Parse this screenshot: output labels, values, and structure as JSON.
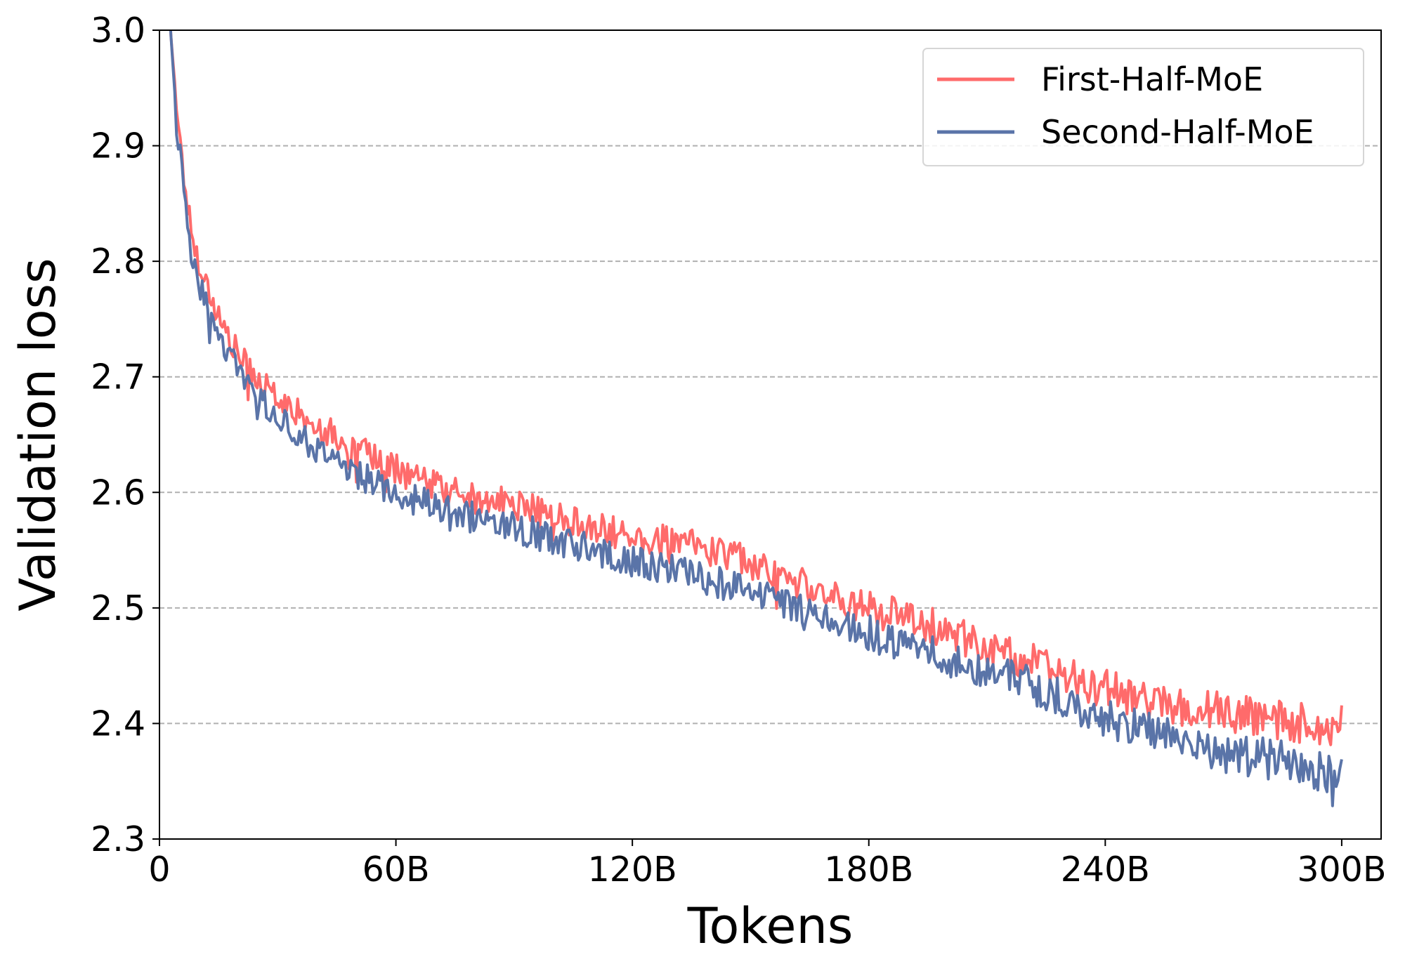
{
  "chart_data": {
    "type": "line",
    "xlabel": "Tokens",
    "ylabel": "Validation loss",
    "xlim": [
      0,
      310
    ],
    "ylim": [
      2.3,
      3.0
    ],
    "x_ticks": [
      0,
      60,
      120,
      180,
      240,
      300
    ],
    "x_tick_labels": [
      "0",
      "60B",
      "120B",
      "180B",
      "240B",
      "300B"
    ],
    "y_ticks": [
      2.3,
      2.4,
      2.5,
      2.6,
      2.7,
      2.8,
      2.9,
      3.0
    ],
    "y_tick_labels": [
      "2.3",
      "2.4",
      "2.5",
      "2.6",
      "2.7",
      "2.8",
      "2.9",
      "3.0"
    ],
    "grid": "horizontal dashed",
    "legend_position": "top-right",
    "x_unit": "B tokens",
    "series": [
      {
        "name": "First-Half-MoE",
        "color": "#ff6b6b",
        "x": [
          2,
          3,
          4,
          5,
          6,
          7,
          8,
          9,
          10,
          12,
          14,
          16,
          18,
          20,
          22,
          25,
          28,
          30,
          35,
          40,
          45,
          50,
          55,
          60,
          70,
          80,
          90,
          100,
          110,
          120,
          130,
          140,
          150,
          160,
          170,
          180,
          190,
          200,
          210,
          220,
          230,
          240,
          250,
          260,
          270,
          280,
          290,
          298,
          300
        ],
        "y": [
          3.05,
          2.99,
          2.95,
          2.91,
          2.88,
          2.85,
          2.83,
          2.81,
          2.8,
          2.78,
          2.76,
          2.745,
          2.73,
          2.72,
          2.71,
          2.7,
          2.69,
          2.683,
          2.67,
          2.658,
          2.648,
          2.638,
          2.628,
          2.62,
          2.605,
          2.595,
          2.59,
          2.58,
          2.57,
          2.56,
          2.557,
          2.55,
          2.54,
          2.525,
          2.51,
          2.5,
          2.49,
          2.48,
          2.466,
          2.455,
          2.44,
          2.43,
          2.42,
          2.415,
          2.41,
          2.405,
          2.4,
          2.395,
          2.405
        ]
      },
      {
        "name": "Second-Half-MoE",
        "color": "#5a74a8",
        "x": [
          2,
          3,
          4,
          5,
          6,
          7,
          8,
          9,
          10,
          12,
          14,
          16,
          18,
          20,
          22,
          25,
          28,
          30,
          35,
          40,
          45,
          50,
          55,
          60,
          70,
          80,
          90,
          100,
          110,
          120,
          130,
          140,
          150,
          160,
          170,
          180,
          190,
          200,
          210,
          220,
          230,
          240,
          250,
          260,
          270,
          280,
          290,
          298,
          300
        ],
        "y": [
          3.05,
          2.99,
          2.94,
          2.9,
          2.87,
          2.84,
          2.81,
          2.79,
          2.78,
          2.76,
          2.745,
          2.73,
          2.717,
          2.705,
          2.695,
          2.683,
          2.673,
          2.665,
          2.65,
          2.638,
          2.627,
          2.617,
          2.607,
          2.6,
          2.587,
          2.578,
          2.57,
          2.56,
          2.55,
          2.54,
          2.532,
          2.525,
          2.515,
          2.5,
          2.49,
          2.478,
          2.467,
          2.457,
          2.446,
          2.435,
          2.42,
          2.405,
          2.395,
          2.385,
          2.375,
          2.37,
          2.365,
          2.355,
          2.37
        ]
      }
    ]
  }
}
